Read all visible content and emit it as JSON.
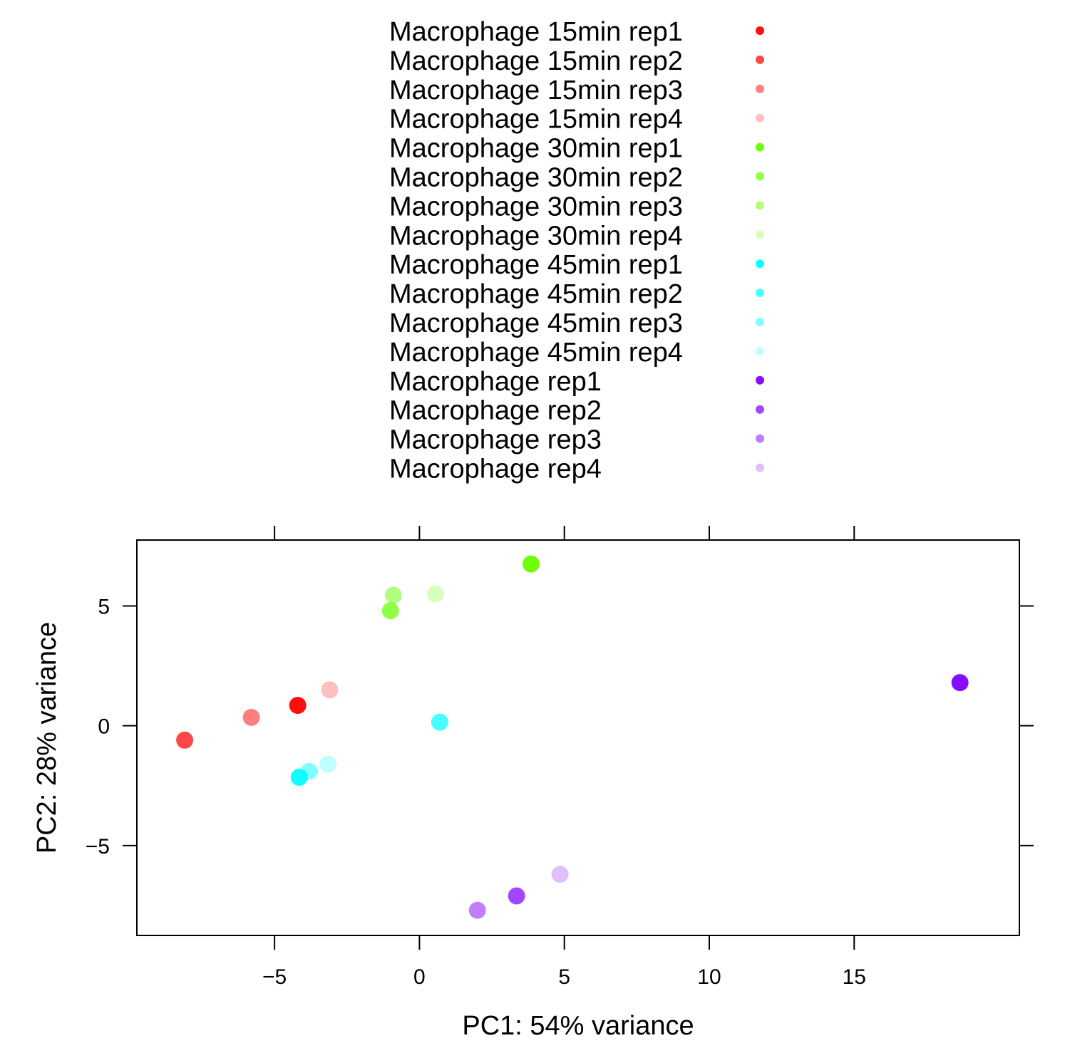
{
  "chart_data": {
    "type": "scatter",
    "title": "",
    "xlabel": "PC1: 54% variance",
    "ylabel": "PC2: 28% variance",
    "xlim": [
      -9.75,
      20.7
    ],
    "ylim": [
      -8.75,
      7.75
    ],
    "xticks": [
      -5,
      0,
      5,
      10,
      15
    ],
    "yticks": [
      -5,
      0,
      5
    ],
    "xtick_labels": [
      "−5",
      "0",
      "5",
      "10",
      "15"
    ],
    "ytick_labels": [
      "−5",
      "0",
      "5"
    ],
    "grid": false,
    "legend_position": "top",
    "series": [
      {
        "name": "Macrophage 15min rep1",
        "color": "#ff0000",
        "opacity": 0.95,
        "x": -4.2,
        "y": 0.85
      },
      {
        "name": "Macrophage 15min rep2",
        "color": "#ff0000",
        "opacity": 0.72,
        "x": -8.1,
        "y": -0.6
      },
      {
        "name": "Macrophage 15min rep3",
        "color": "#ff0000",
        "opacity": 0.5,
        "x": -5.8,
        "y": 0.35
      },
      {
        "name": "Macrophage 15min rep4",
        "color": "#ff0000",
        "opacity": 0.25,
        "x": -3.1,
        "y": 1.5
      },
      {
        "name": "Macrophage 30min rep1",
        "color": "#66ff00",
        "opacity": 0.95,
        "x": 3.85,
        "y": 6.75
      },
      {
        "name": "Macrophage 30min rep2",
        "color": "#66ff00",
        "opacity": 0.72,
        "x": -1.0,
        "y": 4.8
      },
      {
        "name": "Macrophage 30min rep3",
        "color": "#66ff00",
        "opacity": 0.5,
        "x": -0.9,
        "y": 5.45
      },
      {
        "name": "Macrophage 30min rep4",
        "color": "#66ff00",
        "opacity": 0.25,
        "x": 0.55,
        "y": 5.5
      },
      {
        "name": "Macrophage 45min rep1",
        "color": "#00ffff",
        "opacity": 0.95,
        "x": -4.15,
        "y": -2.15
      },
      {
        "name": "Macrophage 45min rep2",
        "color": "#00ffff",
        "opacity": 0.72,
        "x": 0.7,
        "y": 0.15
      },
      {
        "name": "Macrophage 45min rep3",
        "color": "#00ffff",
        "opacity": 0.5,
        "x": -3.8,
        "y": -1.9
      },
      {
        "name": "Macrophage 45min rep4",
        "color": "#00ffff",
        "opacity": 0.25,
        "x": -3.15,
        "y": -1.6
      },
      {
        "name": "Macrophage rep1",
        "color": "#7f00ff",
        "opacity": 0.95,
        "x": 18.65,
        "y": 1.8
      },
      {
        "name": "Macrophage rep2",
        "color": "#7f00ff",
        "opacity": 0.72,
        "x": 3.35,
        "y": -7.1
      },
      {
        "name": "Macrophage rep3",
        "color": "#7f00ff",
        "opacity": 0.5,
        "x": 2.0,
        "y": -7.7
      },
      {
        "name": "Macrophage rep4",
        "color": "#7f00ff",
        "opacity": 0.25,
        "x": 4.85,
        "y": -6.2
      }
    ]
  }
}
